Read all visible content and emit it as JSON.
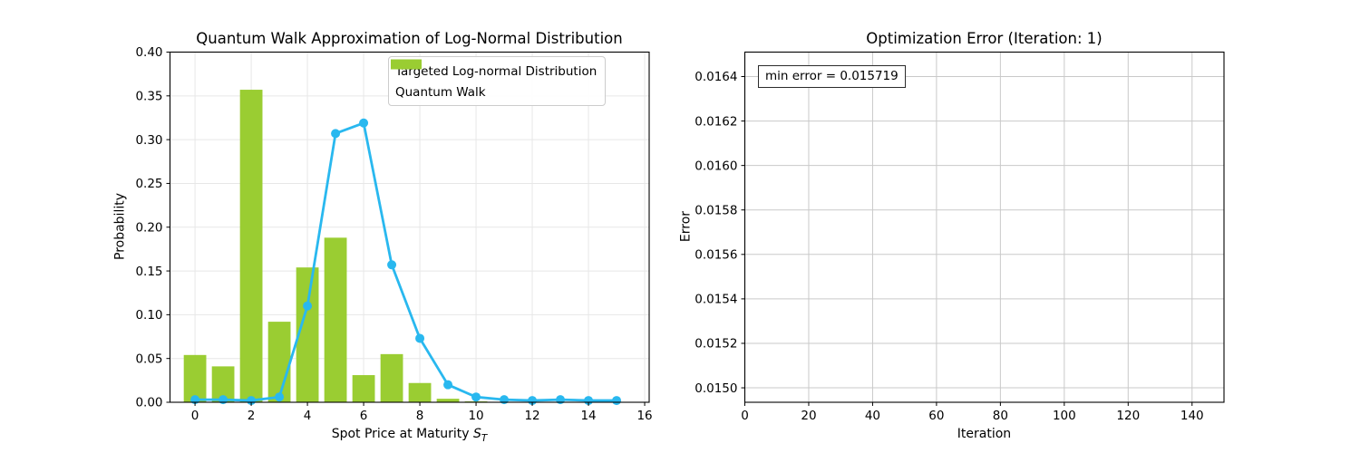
{
  "figure": {
    "background": "#ffffff"
  },
  "chart_data": [
    {
      "id": "quantum_walk",
      "type": "bar+line",
      "title": "Quantum Walk Approximation of Log-Normal Distribution",
      "xlabel": "Spot Price at Maturity",
      "xlabel_math": "S",
      "xlabel_math_sub": "T",
      "ylabel": "Probability",
      "xlim": [
        -0.89,
        16.16
      ],
      "ylim": [
        0,
        0.4
      ],
      "xticks": {
        "values": [
          0,
          2,
          4,
          6,
          8,
          10,
          12,
          14,
          16
        ],
        "labels": [
          "0",
          "2",
          "4",
          "6",
          "8",
          "10",
          "12",
          "14",
          "16"
        ]
      },
      "yticks": {
        "values": [
          0.0,
          0.05,
          0.1,
          0.15,
          0.2,
          0.25,
          0.3,
          0.35,
          0.4
        ],
        "labels": [
          "0.00",
          "0.05",
          "0.10",
          "0.15",
          "0.20",
          "0.25",
          "0.30",
          "0.35",
          "0.40"
        ]
      },
      "grid": true,
      "grid_color": "#e7e7e7",
      "legend_position": "upper-right",
      "x": [
        0,
        1,
        2,
        3,
        4,
        5,
        6,
        7,
        8,
        9,
        10,
        11,
        12,
        13,
        14,
        15
      ],
      "series": [
        {
          "name": "Targeted Log-normal Distribution",
          "type": "line",
          "color": "#29b8ef",
          "marker": "circle",
          "values": [
            0.003,
            0.003,
            0.002,
            0.006,
            0.11,
            0.307,
            0.319,
            0.157,
            0.073,
            0.02,
            0.006,
            0.003,
            0.002,
            0.003,
            0.002,
            0.002
          ]
        },
        {
          "name": "Quantum Walk",
          "type": "bar",
          "color": "#9acd32",
          "bar_width": 0.8,
          "values": [
            0.054,
            0.041,
            0.357,
            0.092,
            0.154,
            0.188,
            0.031,
            0.055,
            0.022,
            0.004,
            0.001,
            0,
            0,
            0,
            0,
            0
          ]
        }
      ]
    },
    {
      "id": "optimization_error",
      "type": "line",
      "title": "Optimization Error (Iteration: 1)",
      "xlabel": "Iteration",
      "ylabel": "Error",
      "xlim": [
        0,
        150
      ],
      "ylim": [
        0.014935,
        0.01651
      ],
      "xticks": {
        "values": [
          0,
          20,
          40,
          60,
          80,
          100,
          120,
          140
        ],
        "labels": [
          "0",
          "20",
          "40",
          "60",
          "80",
          "100",
          "120",
          "140"
        ]
      },
      "yticks": {
        "values": [
          0.015,
          0.0152,
          0.0154,
          0.0156,
          0.0158,
          0.016,
          0.0162,
          0.0164
        ],
        "labels": [
          "0.0150",
          "0.0152",
          "0.0154",
          "0.0156",
          "0.0158",
          "0.0160",
          "0.0162",
          "0.0164"
        ]
      },
      "grid": true,
      "grid_color": "#c9c9c9",
      "annotation": {
        "text": "min error = 0.015719"
      },
      "x": [],
      "series": []
    }
  ]
}
